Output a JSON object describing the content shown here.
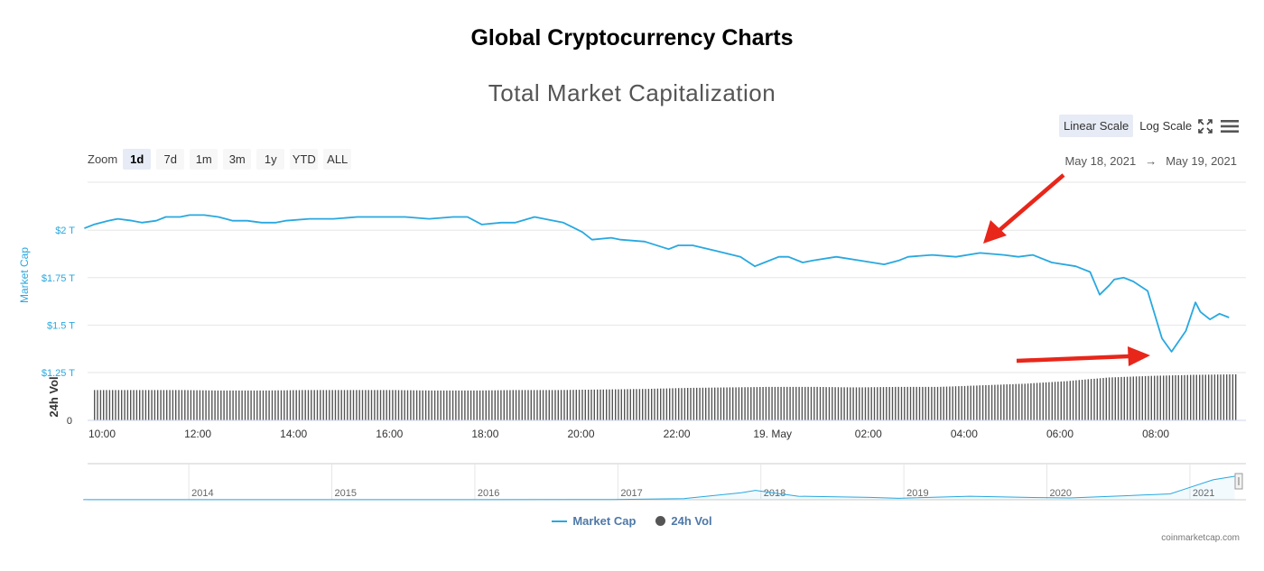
{
  "page": {
    "heading": "Global Cryptocurrency Charts",
    "watermark": "coinmarketcap.com"
  },
  "toolbar": {
    "linear_scale": "Linear Scale",
    "log_scale": "Log Scale",
    "active_scale": "Linear Scale",
    "fullscreen_icon": "fullscreen-icon",
    "menu_icon": "hamburger-menu-icon"
  },
  "zoom": {
    "label": "Zoom",
    "options": [
      "1d",
      "7d",
      "1m",
      "3m",
      "1y",
      "YTD",
      "ALL"
    ],
    "active": "1d"
  },
  "range": {
    "from": "May 18, 2021",
    "arrow": "→",
    "to": "May 19, 2021"
  },
  "colors": {
    "market_cap_line": "#28a8e0",
    "volume_bars": "#555555",
    "annotation_arrows": "#e8261a",
    "axis_label_blue": "#28a8e0"
  },
  "chart_data": [
    {
      "type": "line",
      "title": "Total Market Capitalization",
      "ylabel": "Market Cap",
      "y_ticks": [
        "$1.25 T",
        "$1.5 T",
        "$1.75 T",
        "$2 T"
      ],
      "y_unit": "trillion USD",
      "ylim": [
        1.25,
        2.25
      ],
      "x_ticks": [
        "10:00",
        "12:00",
        "14:00",
        "16:00",
        "18:00",
        "20:00",
        "22:00",
        "19. May",
        "02:00",
        "04:00",
        "06:00",
        "08:00"
      ],
      "x_range_hours": [
        9.8,
        33.7
      ],
      "grid": true,
      "series": [
        {
          "name": "Market Cap",
          "x_hours": [
            9.8,
            10.0,
            10.3,
            10.5,
            10.8,
            11.0,
            11.3,
            11.5,
            11.8,
            12.0,
            12.3,
            12.6,
            12.9,
            13.2,
            13.5,
            13.8,
            14.0,
            14.5,
            15.0,
            15.5,
            16.0,
            16.5,
            17.0,
            17.5,
            17.8,
            18.1,
            18.5,
            18.8,
            19.2,
            19.4,
            19.8,
            20.2,
            20.4,
            20.8,
            21.0,
            21.5,
            22.0,
            22.2,
            22.5,
            23.0,
            23.5,
            23.8,
            24.0,
            24.3,
            24.5,
            24.8,
            25.0,
            25.5,
            26.0,
            26.5,
            26.8,
            27.0,
            27.5,
            28.0,
            28.5,
            29.0,
            29.3,
            29.6,
            30.0,
            30.5,
            30.8,
            31.0,
            31.2,
            31.3,
            31.5,
            31.7,
            32.0,
            32.3,
            32.5,
            32.8,
            33.0,
            33.1,
            33.3,
            33.5,
            33.7
          ],
          "values": [
            2.01,
            2.03,
            2.05,
            2.06,
            2.05,
            2.04,
            2.05,
            2.07,
            2.07,
            2.08,
            2.08,
            2.07,
            2.05,
            2.05,
            2.04,
            2.04,
            2.05,
            2.06,
            2.06,
            2.07,
            2.07,
            2.07,
            2.06,
            2.07,
            2.07,
            2.03,
            2.04,
            2.04,
            2.07,
            2.06,
            2.04,
            1.99,
            1.95,
            1.96,
            1.95,
            1.94,
            1.9,
            1.92,
            1.92,
            1.89,
            1.86,
            1.81,
            1.83,
            1.86,
            1.86,
            1.83,
            1.84,
            1.86,
            1.84,
            1.82,
            1.84,
            1.86,
            1.87,
            1.86,
            1.88,
            1.87,
            1.86,
            1.87,
            1.83,
            1.81,
            1.78,
            1.66,
            1.71,
            1.74,
            1.75,
            1.73,
            1.68,
            1.43,
            1.36,
            1.47,
            1.62,
            1.57,
            1.53,
            1.56,
            1.54
          ]
        }
      ]
    },
    {
      "type": "bar",
      "ylabel": "24h Vol",
      "y_ticks": [
        "0"
      ],
      "series": [
        {
          "name": "24h Vol",
          "relative_values": [
            0.58,
            0.58,
            0.58,
            0.57,
            0.57,
            0.58,
            0.58,
            0.58,
            0.57,
            0.57,
            0.58,
            0.58,
            0.59,
            0.6,
            0.62,
            0.63,
            0.64,
            0.64,
            0.63,
            0.64,
            0.64,
            0.67,
            0.7,
            0.75,
            0.82,
            0.85,
            0.87,
            0.88
          ]
        }
      ]
    },
    {
      "type": "area",
      "name": "navigator",
      "x_ticks": [
        "2014",
        "2015",
        "2016",
        "2017",
        "2018",
        "2019",
        "2020",
        "2021"
      ],
      "x_years": [
        2013.3,
        2014.0,
        2015.0,
        2016.0,
        2017.0,
        2017.5,
        2017.9,
        2018.0,
        2018.3,
        2018.8,
        2019.0,
        2019.5,
        2019.9,
        2020.2,
        2020.6,
        2020.9,
        2021.0,
        2021.2,
        2021.35
      ],
      "values": [
        0.01,
        0.01,
        0.005,
        0.007,
        0.02,
        0.1,
        0.6,
        0.8,
        0.3,
        0.2,
        0.12,
        0.3,
        0.2,
        0.15,
        0.35,
        0.5,
        0.9,
        1.7,
        2.0
      ]
    }
  ]
}
